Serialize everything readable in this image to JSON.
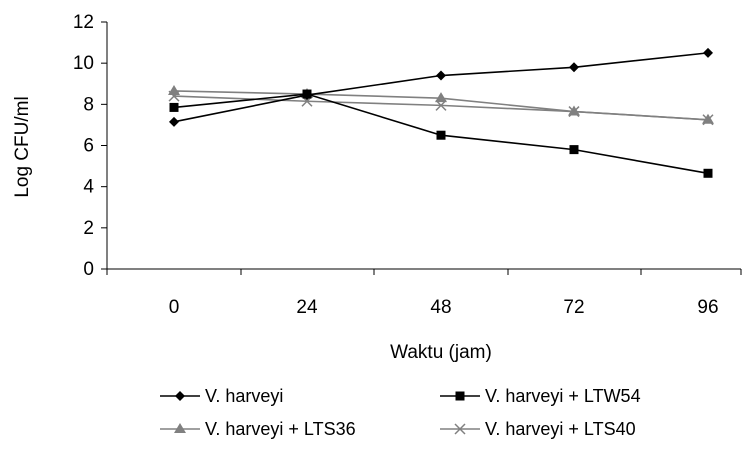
{
  "chart_data": {
    "type": "line",
    "title": "",
    "xlabel": "Waktu (jam)",
    "ylabel": "Log CFU/ml",
    "categories": [
      "0",
      "24",
      "48",
      "72",
      "96"
    ],
    "ylim": [
      0,
      12
    ],
    "yticks": [
      0,
      2,
      4,
      6,
      8,
      10,
      12
    ],
    "grid": false,
    "legend_position": "bottom",
    "series": [
      {
        "name": "V. harveyi",
        "values": [
          7.15,
          8.45,
          9.4,
          9.8,
          10.5
        ],
        "color": "#000000",
        "marker": "diamond"
      },
      {
        "name": "V. harveyi + LTW54",
        "values": [
          7.85,
          8.5,
          6.5,
          5.8,
          4.65
        ],
        "color": "#000000",
        "marker": "square"
      },
      {
        "name": "V. harveyi + LTS36",
        "values": [
          8.65,
          8.5,
          8.3,
          7.65,
          7.25
        ],
        "color": "#808080",
        "marker": "triangle"
      },
      {
        "name": "V. harveyi + LTS40",
        "values": [
          8.4,
          8.15,
          7.95,
          7.65,
          7.25
        ],
        "color": "#808080",
        "marker": "x"
      }
    ]
  }
}
